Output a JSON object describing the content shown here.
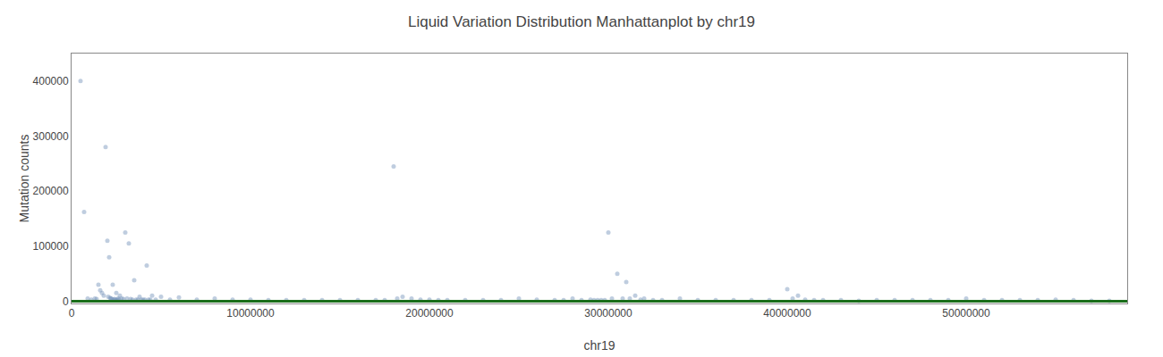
{
  "chart_data": {
    "type": "scatter",
    "title": "Liquid Variation Distribution Manhattanplot by chr19",
    "xlabel": "chr19",
    "ylabel": "Mutation counts",
    "color": "#7090b8",
    "marker": "circle",
    "grid": false,
    "reference_lines": [
      {
        "axis": "y",
        "value": 0,
        "color": "#1a6e1a"
      }
    ],
    "xlim": [
      0,
      59000000
    ],
    "ylim": [
      -4000,
      450000
    ],
    "xticks": [
      0,
      10000000,
      20000000,
      30000000,
      40000000,
      50000000
    ],
    "yticks": [
      0,
      100000,
      200000,
      300000,
      400000
    ],
    "x": [
      500000,
      700000,
      900000,
      1100000,
      1300000,
      1400000,
      1500000,
      1600000,
      1700000,
      1800000,
      1900000,
      2000000,
      2050000,
      2100000,
      2150000,
      2200000,
      2250000,
      2300000,
      2350000,
      2400000,
      2450000,
      2500000,
      2550000,
      2600000,
      2650000,
      2700000,
      2800000,
      2900000,
      3000000,
      3100000,
      3200000,
      3300000,
      3400000,
      3500000,
      3600000,
      3700000,
      3800000,
      3900000,
      4000000,
      4100000,
      4200000,
      4300000,
      4400000,
      4500000,
      4700000,
      5000000,
      5500000,
      6000000,
      7000000,
      8000000,
      9000000,
      10000000,
      11000000,
      12000000,
      13000000,
      14000000,
      15000000,
      16000000,
      17000000,
      17500000,
      18000000,
      18200000,
      18500000,
      19000000,
      19500000,
      20000000,
      20500000,
      21000000,
      22000000,
      23000000,
      24000000,
      25000000,
      26000000,
      27000000,
      27500000,
      28000000,
      28500000,
      29000000,
      29200000,
      29400000,
      29600000,
      29800000,
      30000000,
      30200000,
      30500000,
      30800000,
      31000000,
      31200000,
      31500000,
      31800000,
      32000000,
      32500000,
      33000000,
      34000000,
      35000000,
      36000000,
      37000000,
      38000000,
      39000000,
      40000000,
      40300000,
      40600000,
      41000000,
      41500000,
      42000000,
      43000000,
      44000000,
      45000000,
      46000000,
      47000000,
      48000000,
      49000000,
      50000000,
      51000000,
      52000000,
      53000000,
      54000000,
      55000000,
      56000000,
      57000000,
      58000000
    ],
    "values": [
      400000,
      162000,
      5000,
      3000,
      5000,
      4000,
      30000,
      20000,
      15000,
      10000,
      280000,
      110000,
      8000,
      80000,
      6000,
      5000,
      4000,
      30000,
      3000,
      4000,
      3000,
      15000,
      3000,
      5000,
      3000,
      10000,
      5000,
      4000,
      125000,
      5000,
      105000,
      4000,
      3000,
      38000,
      3000,
      3000,
      8000,
      3000,
      3000,
      3000,
      65000,
      3000,
      3000,
      10000,
      3000,
      8000,
      3000,
      7000,
      3000,
      5000,
      3000,
      3000,
      2000,
      2000,
      2000,
      2000,
      2000,
      2000,
      2000,
      2000,
      245000,
      5000,
      8000,
      5000,
      3000,
      3000,
      2000,
      2000,
      2000,
      2000,
      2000,
      5000,
      3000,
      2000,
      2000,
      5000,
      2000,
      3000,
      2000,
      2000,
      2000,
      2000,
      125000,
      5000,
      50000,
      5000,
      35000,
      5000,
      10000,
      3000,
      5000,
      2000,
      2000,
      5000,
      2000,
      2000,
      2000,
      2000,
      2000,
      22000,
      5000,
      10000,
      3000,
      2000,
      2000,
      2000,
      1000,
      2000,
      2000,
      2000,
      2000,
      2000,
      5000,
      2000,
      2000,
      2000,
      2000,
      3000,
      2000,
      1000,
      1000
    ]
  }
}
